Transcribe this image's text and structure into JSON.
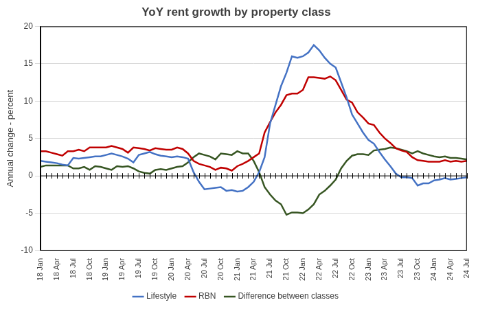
{
  "chart_data": {
    "type": "line",
    "title": "YoY rent growth by property class",
    "y_label": "Annual change - percent",
    "categories": [
      "18 Jan",
      null,
      null,
      "18 Apr",
      null,
      null,
      "18 Jul",
      null,
      null,
      "18 Oct",
      null,
      null,
      "19 Jan",
      null,
      null,
      "19 Apr",
      null,
      null,
      "19 Jul",
      null,
      null,
      "19 Oct",
      null,
      null,
      "20 Jan",
      null,
      null,
      "20 Apr",
      null,
      null,
      "20 Jul",
      null,
      null,
      "20 Oct",
      null,
      null,
      "21 Jan",
      null,
      null,
      "21 Apr",
      null,
      null,
      "21 Jul",
      null,
      null,
      "21 Oct",
      null,
      null,
      "22 Jan",
      null,
      null,
      "22 Apr",
      null,
      null,
      "22 Jul",
      null,
      null,
      "22 Oct",
      null,
      null,
      "23 Jan",
      null,
      null,
      "23 Apr",
      null,
      null,
      "23 Jul",
      null,
      null,
      "23 Oct",
      null,
      null,
      "24 Jan",
      null,
      null,
      "24 Apr",
      null,
      null,
      "24 Jul"
    ],
    "series": [
      {
        "name": "Lifestyle",
        "color": "#4472c4",
        "values": [
          2.0,
          1.9,
          1.8,
          1.7,
          1.5,
          1.4,
          2.4,
          2.3,
          2.4,
          2.5,
          2.6,
          2.6,
          2.8,
          3.0,
          2.8,
          2.6,
          2.3,
          1.8,
          2.8,
          3.0,
          3.2,
          2.9,
          2.7,
          2.6,
          2.5,
          2.6,
          2.5,
          2.3,
          0.5,
          -0.8,
          -1.8,
          -1.7,
          -1.6,
          -1.5,
          -2.0,
          -1.9,
          -2.1,
          -2.0,
          -1.5,
          -0.8,
          0.5,
          2.5,
          7.0,
          9.5,
          12.0,
          13.8,
          16.0,
          15.8,
          16.0,
          16.5,
          17.5,
          16.8,
          15.8,
          15.0,
          14.5,
          12.5,
          10.5,
          8.2,
          7.0,
          5.8,
          4.8,
          4.3,
          3.2,
          2.2,
          1.3,
          0.3,
          -0.2,
          -0.2,
          -0.3,
          -1.3,
          -1.0,
          -1.0,
          -0.6,
          -0.5,
          -0.3,
          -0.5,
          -0.4,
          -0.3,
          -0.2
        ]
      },
      {
        "name": "RBN",
        "color": "#c00000",
        "values": [
          3.3,
          3.3,
          3.1,
          2.9,
          2.7,
          3.3,
          3.3,
          3.5,
          3.3,
          3.8,
          3.8,
          3.8,
          3.8,
          4.0,
          3.8,
          3.6,
          3.1,
          3.8,
          3.7,
          3.6,
          3.4,
          3.7,
          3.6,
          3.5,
          3.5,
          3.8,
          3.6,
          3.0,
          2.0,
          1.6,
          1.4,
          1.2,
          0.8,
          1.1,
          1.0,
          0.7,
          1.3,
          1.6,
          2.0,
          2.5,
          3.0,
          5.8,
          7.2,
          8.5,
          9.5,
          10.8,
          11.0,
          11.0,
          11.5,
          13.2,
          13.2,
          13.1,
          13.0,
          13.3,
          12.8,
          11.5,
          10.2,
          9.8,
          8.5,
          7.8,
          7.0,
          6.8,
          5.8,
          5.0,
          4.4,
          3.7,
          3.4,
          3.2,
          2.5,
          2.1,
          2.0,
          1.9,
          1.9,
          1.9,
          2.1,
          1.9,
          2.0,
          1.9,
          2.0
        ]
      },
      {
        "name": "Difference between classes",
        "color": "#375623",
        "values": [
          1.2,
          1.4,
          1.4,
          1.4,
          1.4,
          1.4,
          1.0,
          1.0,
          1.2,
          0.8,
          1.3,
          1.2,
          1.0,
          0.8,
          1.3,
          1.2,
          1.3,
          1.0,
          0.6,
          0.4,
          0.3,
          0.8,
          0.9,
          0.8,
          1.0,
          1.2,
          1.3,
          1.8,
          2.5,
          3.0,
          2.8,
          2.6,
          2.2,
          3.0,
          2.9,
          2.8,
          3.3,
          3.0,
          3.0,
          2.0,
          0.5,
          -1.5,
          -2.5,
          -3.3,
          -3.8,
          -5.2,
          -4.9,
          -4.9,
          -5.0,
          -4.5,
          -3.8,
          -2.5,
          -2.0,
          -1.3,
          -0.5,
          1.0,
          2.0,
          2.7,
          2.9,
          2.9,
          2.8,
          3.4,
          3.5,
          3.6,
          3.8,
          3.7,
          3.5,
          3.3,
          3.0,
          3.3,
          3.0,
          2.8,
          2.6,
          2.5,
          2.6,
          2.4,
          2.4,
          2.3,
          2.2
        ]
      }
    ],
    "ylim": [
      -10,
      20
    ],
    "yticks": [
      -10,
      -5,
      0,
      5,
      10,
      15,
      20
    ],
    "grid": true,
    "legend": "bottom"
  }
}
